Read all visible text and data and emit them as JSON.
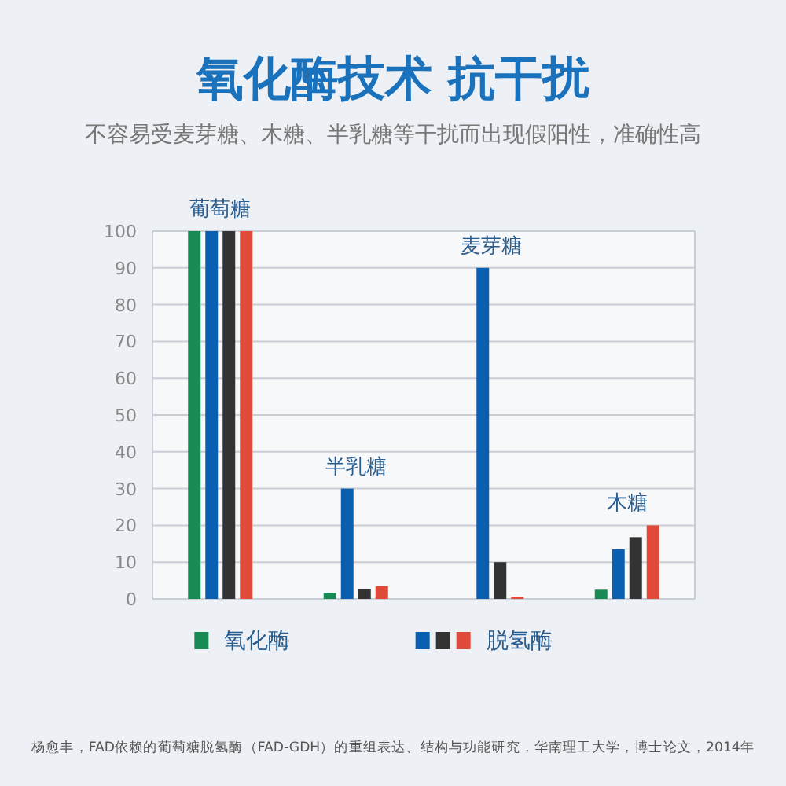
{
  "chart_data": {
    "type": "bar",
    "title": "氧化酶技术 抗干扰",
    "subtitle": "不容易受麦芽糖、木糖、半乳糖等干扰而出现假阳性，准确性高",
    "categories": [
      "葡萄糖",
      "半乳糖",
      "麦芽糖",
      "木糖"
    ],
    "series": [
      {
        "name": "氧化酶",
        "color": "#1a8a55",
        "values": [
          100,
          1.7,
          0,
          2.5
        ]
      },
      {
        "color": "#0a5fb0",
        "values": [
          100,
          30,
          90,
          13.5
        ]
      },
      {
        "color": "#333333",
        "values": [
          100,
          2.7,
          10,
          16.8
        ]
      },
      {
        "name": "脱氢酶",
        "color": "#e04a3a",
        "values": [
          100,
          3.5,
          0.5,
          20
        ]
      }
    ],
    "ylim": [
      0,
      100
    ],
    "yticks": [
      0,
      10,
      20,
      30,
      40,
      50,
      60,
      70,
      80,
      90,
      100
    ],
    "grid": "y",
    "legend": "bottom",
    "annotations": [
      "杨愈丰，FAD依赖的葡萄糖脱氢酶（FAD-GDH）的重组表达、结构与功能研究，华南理工大学，博士论文，2014年"
    ]
  }
}
